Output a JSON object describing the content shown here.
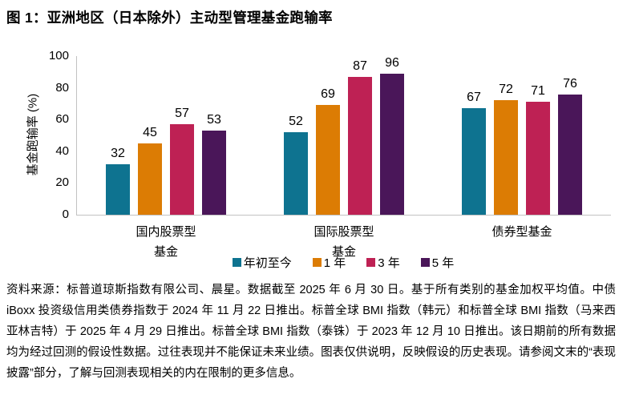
{
  "title": "图 1：亚洲地区（日本除外）主动型管理基金跑输率",
  "chart_data": {
    "type": "bar",
    "title": "图 1：亚洲地区（日本除外）主动型管理基金跑输率",
    "ylabel": "基金跑输率 (%)",
    "xlabel": "",
    "ylim": [
      0,
      100
    ],
    "yticks": [
      0,
      20,
      40,
      60,
      80,
      100
    ],
    "grid": false,
    "legend_position": "bottom",
    "axis_color": "#c2c2c2",
    "categories": [
      [
        "国内股票型",
        "基金"
      ],
      [
        "国际股票型",
        "基金"
      ],
      [
        "债券型基金"
      ]
    ],
    "series": [
      {
        "name": "年初至今",
        "color": "#0e7390",
        "values": [
          32,
          52,
          67
        ]
      },
      {
        "name": "1 年",
        "color": "#dc7c04",
        "values": [
          45,
          69,
          72
        ]
      },
      {
        "name": "3 年",
        "color": "#be2154",
        "values": [
          57,
          87,
          71
        ]
      },
      {
        "name": "5 年",
        "color": "#4a1659",
        "values": [
          53,
          96,
          76
        ]
      }
    ]
  },
  "footnote": "资料来源：标普道琼斯指数有限公司、晨星。数据截至 2025 年 6 月 30 日。基于所有类别的基金加权平均值。中债 iBoxx 投资级信用类债券指数于 2024 年 11 月 22 日推出。标普全球 BMI 指数（韩元）和标普全球 BMI 指数（马来西亚林吉特）于 2025 年 4 月 29 日推出。标普全球 BMI 指数（泰铢）于 2023 年 12 月 10 日推出。该日期前的所有数据均为经过回测的假设性数据。过往表现并不能保证未来业绩。图表仅供说明，反映假设的历史表现。请参阅文末的“表现披露”部分，了解与回测表现相关的内在限制的更多信息。"
}
